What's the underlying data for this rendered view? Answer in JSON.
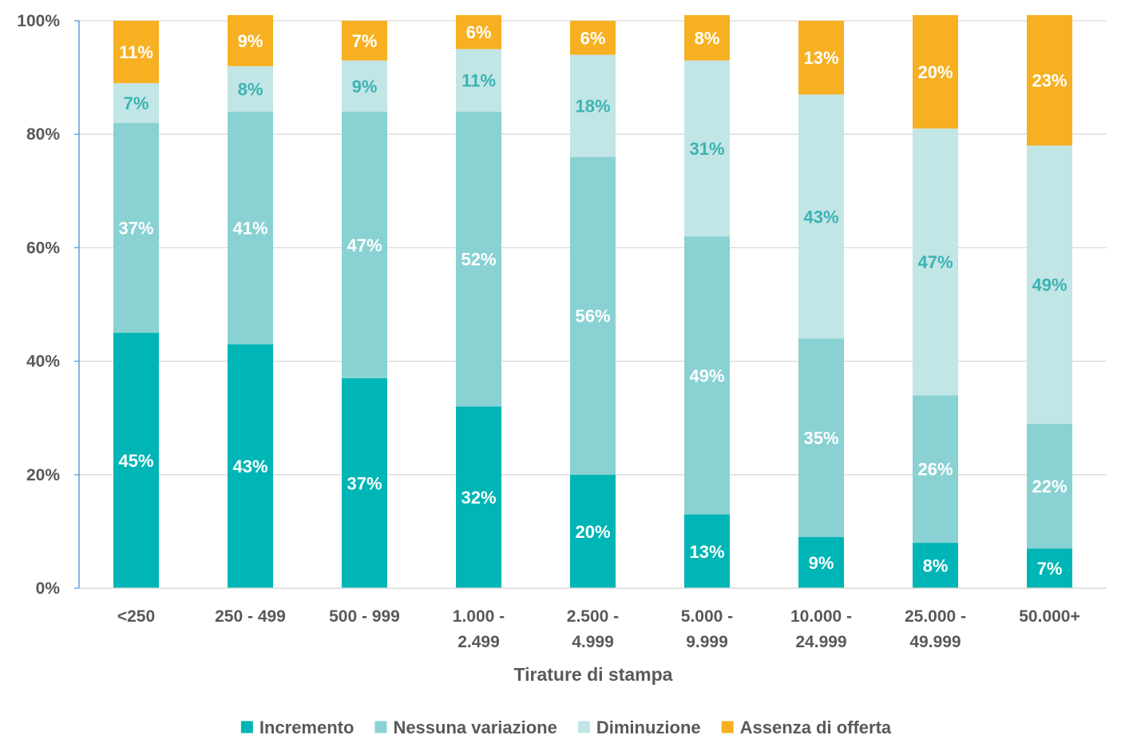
{
  "chart_data": {
    "type": "bar",
    "stacked": true,
    "categories": [
      [
        "<250"
      ],
      [
        "250 - 499"
      ],
      [
        "500 - 999"
      ],
      [
        "1.000 -",
        "2.499"
      ],
      [
        "2.500 -",
        "4.999"
      ],
      [
        "5.000 -",
        "9.999"
      ],
      [
        "10.000 -",
        "24.999"
      ],
      [
        "25.000 -",
        "49.999"
      ],
      [
        "50.000+"
      ]
    ],
    "series": [
      {
        "name": "Incremento",
        "color": "#00B5B5",
        "label_color": "#ffffff",
        "values": [
          45,
          43,
          37,
          32,
          20,
          13,
          9,
          8,
          7
        ]
      },
      {
        "name": "Nessuna variazione",
        "color": "#89D1D3",
        "label_color": "#ffffff",
        "values": [
          37,
          41,
          47,
          52,
          56,
          49,
          35,
          26,
          22
        ]
      },
      {
        "name": "Diminuzione",
        "color": "#C2E5E6",
        "label_color": "#3BB3B3",
        "values": [
          7,
          8,
          9,
          11,
          18,
          31,
          43,
          47,
          49
        ]
      },
      {
        "name": "Assenza di offerta",
        "color": "#F7B022",
        "label_color": "#ffffff",
        "values": [
          11,
          9,
          7,
          6,
          6,
          8,
          13,
          20,
          23
        ]
      }
    ],
    "value_suffix": "%",
    "ylim": [
      0,
      100
    ],
    "yticks": [
      "0%",
      "20%",
      "40%",
      "60%",
      "80%",
      "100%"
    ],
    "xlabel": "Tirature di stampa",
    "ylabel": "",
    "title": "",
    "grid": true,
    "legend_position": "bottom"
  }
}
